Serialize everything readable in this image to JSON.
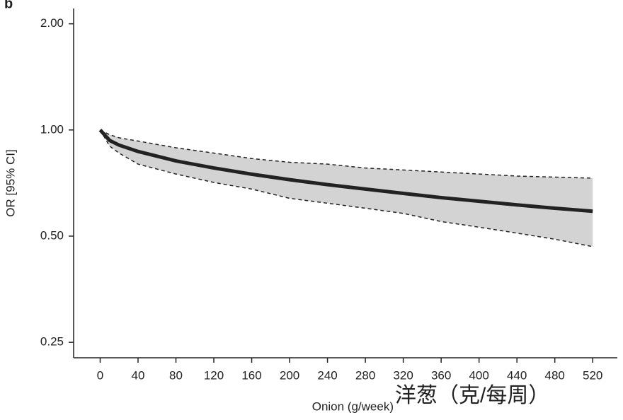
{
  "chart_data": {
    "type": "line",
    "panel_label": "b",
    "y_label": "OR [95% CI]",
    "x_label": "Onion (g/week)",
    "annotation": "洋葱（克/每周）",
    "x": [
      0,
      10,
      20,
      40,
      80,
      120,
      160,
      200,
      240,
      280,
      320,
      360,
      400,
      440,
      480,
      520
    ],
    "values": [
      1.0,
      0.934,
      0.906,
      0.869,
      0.817,
      0.78,
      0.749,
      0.723,
      0.7,
      0.68,
      0.661,
      0.643,
      0.628,
      0.613,
      0.6,
      0.588
    ],
    "ci_upper": [
      1.0,
      0.97,
      0.95,
      0.93,
      0.89,
      0.86,
      0.83,
      0.81,
      0.8,
      0.78,
      0.77,
      0.76,
      0.75,
      0.74,
      0.735,
      0.73
    ],
    "ci_lower": [
      1.0,
      0.9,
      0.86,
      0.8,
      0.75,
      0.71,
      0.68,
      0.64,
      0.62,
      0.6,
      0.58,
      0.55,
      0.53,
      0.51,
      0.49,
      0.467
    ],
    "color": "#222222",
    "band_color": "#d3d3d3",
    "annotation_color": "#e8251e",
    "y_log": true,
    "xlim": [
      -28,
      546
    ],
    "ylim": [
      0.226,
      2.21
    ],
    "xticks": [
      0,
      40,
      80,
      120,
      160,
      200,
      240,
      280,
      320,
      360,
      400,
      440,
      480,
      520
    ],
    "yticks": [
      {
        "value": 2,
        "label": "2.00"
      },
      {
        "value": 1,
        "label": "1.00"
      },
      {
        "value": 0.5,
        "label": "0.50"
      },
      0.25
    ]
  }
}
